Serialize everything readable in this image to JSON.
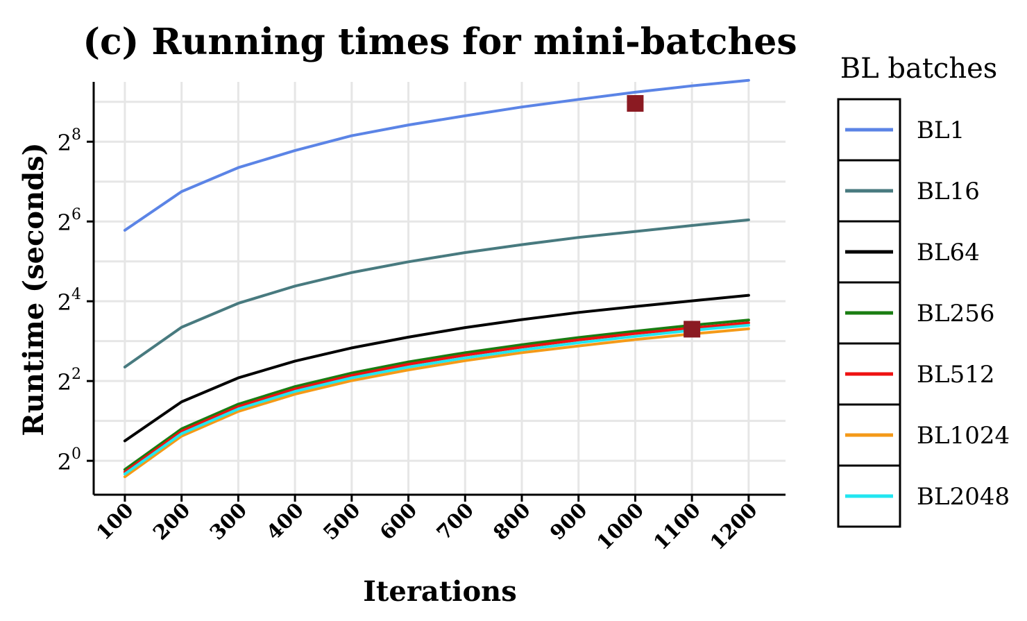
{
  "chart_data": {
    "type": "line",
    "title": "(c) Running times for mini-batches",
    "xlabel": "Iterations",
    "ylabel": "Runtime (seconds)",
    "xlim": [
      45,
      1265
    ],
    "ylim_log2": [
      -0.85,
      9.5
    ],
    "y_scale": "log2",
    "grid": true,
    "x_ticks": [
      100,
      200,
      300,
      400,
      500,
      600,
      700,
      800,
      900,
      1000,
      1100,
      1200
    ],
    "y_ticks": [
      {
        "base": "2",
        "exp": "0",
        "log2": 0
      },
      {
        "base": "2",
        "exp": "2",
        "log2": 2
      },
      {
        "base": "2",
        "exp": "4",
        "log2": 4
      },
      {
        "base": "2",
        "exp": "6",
        "log2": 6
      },
      {
        "base": "2",
        "exp": "8",
        "log2": 8
      }
    ],
    "x": [
      100,
      200,
      300,
      400,
      500,
      600,
      700,
      800,
      900,
      1000,
      1100,
      1200
    ],
    "series": [
      {
        "name": "BL1",
        "color": "#5b84e6",
        "log2_values": [
          5.78,
          6.75,
          7.35,
          7.78,
          8.15,
          8.42,
          8.65,
          8.87,
          9.06,
          9.24,
          9.4,
          9.54
        ]
      },
      {
        "name": "BL16",
        "color": "#487a7f",
        "log2_values": [
          2.35,
          3.35,
          3.95,
          4.38,
          4.72,
          4.99,
          5.22,
          5.42,
          5.6,
          5.75,
          5.9,
          6.04
        ]
      },
      {
        "name": "BL64",
        "color": "#000000",
        "log2_values": [
          0.5,
          1.48,
          2.08,
          2.5,
          2.83,
          3.1,
          3.34,
          3.54,
          3.72,
          3.87,
          4.01,
          4.15
        ]
      },
      {
        "name": "BL256",
        "color": "#1a7d12",
        "log2_values": [
          -0.22,
          0.8,
          1.42,
          1.86,
          2.2,
          2.48,
          2.71,
          2.91,
          3.09,
          3.25,
          3.4,
          3.53
        ]
      },
      {
        "name": "BL512",
        "color": "#ee1111",
        "log2_values": [
          -0.28,
          0.74,
          1.36,
          1.8,
          2.14,
          2.42,
          2.65,
          2.85,
          3.03,
          3.19,
          3.33,
          3.46
        ]
      },
      {
        "name": "BL1024",
        "color": "#f49a18",
        "log2_values": [
          -0.4,
          0.62,
          1.24,
          1.67,
          2.01,
          2.28,
          2.51,
          2.71,
          2.88,
          3.04,
          3.18,
          3.31
        ]
      },
      {
        "name": "BL2048",
        "color": "#22e6f0",
        "log2_values": [
          -0.33,
          0.68,
          1.3,
          1.74,
          2.08,
          2.35,
          2.58,
          2.78,
          2.96,
          3.12,
          3.27,
          3.4
        ]
      }
    ],
    "markers": [
      {
        "x": 1000,
        "log2_value": 8.96,
        "color": "#8b1a22"
      },
      {
        "x": 1100,
        "log2_value": 3.3,
        "color": "#8b1a22"
      }
    ],
    "legend": {
      "title": "BL batches",
      "position": "right"
    }
  }
}
